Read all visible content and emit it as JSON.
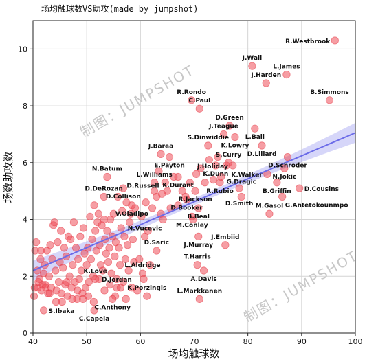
{
  "chart_data": {
    "type": "scatter",
    "title": "场均触球数VS助攻(made by jumpshot)",
    "xlabel": "场均触球数",
    "ylabel": "场数助攻数",
    "xlim": [
      40,
      100
    ],
    "ylim": [
      0,
      11
    ],
    "xticks": [
      "40",
      "50",
      "60",
      "70",
      "80",
      "90",
      "100"
    ],
    "yticks": [
      "0",
      "2",
      "4",
      "6",
      "8",
      "10"
    ],
    "grid": true,
    "point_color": "#ef4e59",
    "regression_color": "#6b6be8",
    "regression": {
      "x": [
        40,
        100
      ],
      "y": [
        2.2,
        7.05
      ],
      "band": [
        0.12,
        0.35
      ]
    },
    "watermarks": [
      "制图：JUMPSHOT",
      "制图：JUMPSHOT"
    ],
    "labeled_points": [
      {
        "label": "R.Westbrook",
        "x": 96.2,
        "y": 10.3
      },
      {
        "label": "J.Wall",
        "x": 80.8,
        "y": 9.4
      },
      {
        "label": "L.James",
        "x": 87.2,
        "y": 9.1
      },
      {
        "label": "J.Harden",
        "x": 83.4,
        "y": 8.8
      },
      {
        "label": "B.Simmons",
        "x": 95.2,
        "y": 8.2
      },
      {
        "label": "R.Rondo",
        "x": 69.5,
        "y": 8.2
      },
      {
        "label": "C.Paul",
        "x": 71.0,
        "y": 7.9
      },
      {
        "label": "D.Green",
        "x": 76.6,
        "y": 7.3
      },
      {
        "label": "L.Ball",
        "x": 81.3,
        "y": 7.2
      },
      {
        "label": "J.Teague",
        "x": 75.5,
        "y": 7.0
      },
      {
        "label": "K.Lowry",
        "x": 77.6,
        "y": 6.9
      },
      {
        "label": "D.Lillard",
        "x": 82.6,
        "y": 6.6
      },
      {
        "label": "S.Dinwiddie",
        "x": 72.6,
        "y": 6.6
      },
      {
        "label": "J.Barea",
        "x": 63.8,
        "y": 6.3
      },
      {
        "label": "E.Payton",
        "x": 65.4,
        "y": 6.2
      },
      {
        "label": "D.Schroder",
        "x": 87.4,
        "y": 6.2
      },
      {
        "label": "S.Curry",
        "x": 76.4,
        "y": 6.0
      },
      {
        "label": "K.Dunn",
        "x": 74.0,
        "y": 5.9
      },
      {
        "label": "J.Holiday",
        "x": 77.2,
        "y": 5.9
      },
      {
        "label": "N.Jokic",
        "x": 86.8,
        "y": 5.8
      },
      {
        "label": "K.Walker",
        "x": 83.6,
        "y": 5.6
      },
      {
        "label": "N.Batum",
        "x": 53.8,
        "y": 5.5
      },
      {
        "label": "K.Durant",
        "x": 67.0,
        "y": 5.5
      },
      {
        "label": "R.Rubio",
        "x": 74.8,
        "y": 5.3
      },
      {
        "label": "B.Griffin",
        "x": 85.4,
        "y": 5.3
      },
      {
        "label": "L.Williams",
        "x": 62.6,
        "y": 5.3
      },
      {
        "label": "D.Cousins",
        "x": 89.6,
        "y": 5.1
      },
      {
        "label": "D.Collison",
        "x": 56.8,
        "y": 5.1
      },
      {
        "label": "D.Smith",
        "x": 78.4,
        "y": 5.1
      },
      {
        "label": "R.Jackson",
        "x": 70.2,
        "y": 5.0
      },
      {
        "label": "D.Russell",
        "x": 64.0,
        "y": 4.9
      },
      {
        "label": "G.Dragic",
        "x": 78.8,
        "y": 4.8
      },
      {
        "label": "G.Antetokounmpo",
        "x": 86.4,
        "y": 4.8
      },
      {
        "label": "D.DeRozan",
        "x": 53.2,
        "y": 4.8
      },
      {
        "label": "D.Booker",
        "x": 68.6,
        "y": 4.7
      },
      {
        "label": "V.Oladipo",
        "x": 58.4,
        "y": 4.5
      },
      {
        "label": "B.Beal",
        "x": 70.8,
        "y": 4.4
      },
      {
        "label": "M.Gasol",
        "x": 84.0,
        "y": 4.2
      },
      {
        "label": "M.Conley",
        "x": 69.6,
        "y": 4.1
      },
      {
        "label": "N.Vucevic",
        "x": 60.8,
        "y": 3.4
      },
      {
        "label": "J.Murray",
        "x": 70.8,
        "y": 3.4
      },
      {
        "label": "J.Embiid",
        "x": 75.8,
        "y": 3.1
      },
      {
        "label": "D.Saric",
        "x": 63.0,
        "y": 2.9
      },
      {
        "label": "T.Harris",
        "x": 70.6,
        "y": 2.4
      },
      {
        "label": "L.Aldridge",
        "x": 60.4,
        "y": 2.1
      },
      {
        "label": "A.Davis",
        "x": 71.8,
        "y": 2.2
      },
      {
        "label": "K.Love",
        "x": 51.6,
        "y": 1.9
      },
      {
        "label": "D.Jordan",
        "x": 55.6,
        "y": 1.6
      },
      {
        "label": "K.Porzingis",
        "x": 61.2,
        "y": 1.3
      },
      {
        "label": "L.Markkanen",
        "x": 71.0,
        "y": 1.2
      },
      {
        "label": "C.Anthony",
        "x": 54.8,
        "y": 1.2
      },
      {
        "label": "S.Ibaka",
        "x": 42.0,
        "y": 0.8
      },
      {
        "label": "C.Capela",
        "x": 51.4,
        "y": 0.8
      }
    ],
    "points": [
      [
        40.2,
        1.3
      ],
      [
        40.4,
        2.9
      ],
      [
        40.6,
        3.2
      ],
      [
        40.8,
        2.2
      ],
      [
        40.9,
        1.6
      ],
      [
        41.2,
        1.9
      ],
      [
        41.4,
        2.6
      ],
      [
        41.5,
        2.9
      ],
      [
        41.8,
        1.7
      ],
      [
        42.0,
        2.1
      ],
      [
        42.2,
        2.4
      ],
      [
        42.4,
        1.6
      ],
      [
        42.6,
        2.9
      ],
      [
        42.8,
        1.4
      ],
      [
        43.0,
        2.0
      ],
      [
        43.2,
        3.1
      ],
      [
        43.4,
        1.6
      ],
      [
        43.6,
        2.6
      ],
      [
        43.8,
        3.8
      ],
      [
        44.0,
        3.9
      ],
      [
        44.2,
        2.2
      ],
      [
        44.4,
        1.5
      ],
      [
        44.6,
        3.2
      ],
      [
        44.8,
        1.8
      ],
      [
        45.0,
        2.5
      ],
      [
        45.2,
        3.6
      ],
      [
        45.4,
        1.1
      ],
      [
        45.6,
        2.3
      ],
      [
        45.8,
        3.0
      ],
      [
        46.0,
        1.7
      ],
      [
        46.2,
        2.7
      ],
      [
        46.4,
        1.3
      ],
      [
        46.6,
        3.4
      ],
      [
        46.8,
        2.0
      ],
      [
        47.0,
        3.3
      ],
      [
        47.2,
        1.6
      ],
      [
        47.4,
        2.4
      ],
      [
        47.6,
        3.9
      ],
      [
        47.8,
        1.8
      ],
      [
        48.0,
        3.0
      ],
      [
        48.2,
        1.2
      ],
      [
        48.4,
        2.6
      ],
      [
        48.6,
        1.9
      ],
      [
        48.8,
        3.4
      ],
      [
        49.0,
        2.2
      ],
      [
        49.2,
        1.4
      ],
      [
        49.4,
        3.7
      ],
      [
        49.6,
        2.8
      ],
      [
        49.8,
        1.6
      ],
      [
        50.0,
        2.4
      ],
      [
        50.2,
        3.0
      ],
      [
        50.4,
        1.8
      ],
      [
        50.6,
        4.1
      ],
      [
        50.8,
        2.6
      ],
      [
        51.0,
        3.3
      ],
      [
        51.2,
        2.0
      ],
      [
        51.4,
        4.5
      ],
      [
        51.6,
        3.6
      ],
      [
        51.8,
        2.9
      ],
      [
        52.0,
        3.9
      ],
      [
        52.2,
        4.2
      ],
      [
        52.4,
        3.1
      ],
      [
        52.6,
        2.4
      ],
      [
        52.8,
        3.8
      ],
      [
        53.0,
        2.2
      ],
      [
        53.2,
        4.0
      ],
      [
        53.4,
        3.3
      ],
      [
        53.6,
        2.8
      ],
      [
        53.8,
        3.6
      ],
      [
        54.0,
        2.5
      ],
      [
        54.2,
        3.0
      ],
      [
        54.4,
        4.0
      ],
      [
        54.6,
        2.1
      ],
      [
        54.8,
        3.4
      ],
      [
        55.0,
        4.2
      ],
      [
        55.2,
        2.7
      ],
      [
        55.4,
        3.2
      ],
      [
        55.6,
        1.9
      ],
      [
        55.8,
        4.8
      ],
      [
        56.0,
        3.0
      ],
      [
        56.2,
        2.4
      ],
      [
        56.4,
        3.7
      ],
      [
        56.6,
        4.3
      ],
      [
        56.8,
        1.8
      ],
      [
        57.0,
        3.4
      ],
      [
        57.2,
        2.6
      ],
      [
        57.4,
        4.6
      ],
      [
        57.6,
        3.1
      ],
      [
        57.8,
        2.2
      ],
      [
        58.0,
        3.9
      ],
      [
        58.2,
        4.2
      ],
      [
        58.4,
        1.6
      ],
      [
        58.6,
        3.3
      ],
      [
        58.8,
        2.5
      ],
      [
        59.0,
        4.4
      ],
      [
        59.4,
        1.5
      ],
      [
        59.8,
        2.6
      ],
      [
        60.2,
        4.1
      ],
      [
        60.6,
        1.9
      ],
      [
        61.0,
        4.6
      ],
      [
        61.4,
        3.6
      ],
      [
        61.8,
        2.4
      ],
      [
        62.2,
        4.4
      ],
      [
        62.6,
        5.0
      ],
      [
        63.0,
        4.8
      ],
      [
        63.4,
        5.7
      ],
      [
        63.8,
        4.2
      ],
      [
        64.2,
        4.0
      ],
      [
        64.6,
        5.3
      ],
      [
        65.0,
        5.0
      ],
      [
        65.6,
        4.4
      ],
      [
        66.2,
        5.5
      ],
      [
        67.0,
        4.5
      ],
      [
        67.8,
        5.0
      ],
      [
        68.4,
        4.8
      ],
      [
        69.2,
        5.3
      ],
      [
        69.8,
        4.0
      ],
      [
        70.4,
        5.6
      ],
      [
        71.2,
        5.8
      ],
      [
        72.0,
        5.3
      ],
      [
        72.8,
        6.1
      ],
      [
        73.6,
        5.4
      ],
      [
        74.4,
        6.2
      ],
      [
        75.0,
        5.5
      ],
      [
        76.0,
        5.9
      ],
      [
        40.3,
        1.6
      ],
      [
        41.0,
        1.8
      ],
      [
        41.6,
        1.5
      ],
      [
        42.3,
        1.7
      ],
      [
        43.1,
        1.4
      ],
      [
        44.3,
        1.1
      ],
      [
        45.3,
        1.4
      ],
      [
        46.3,
        1.8
      ],
      [
        47.3,
        1.2
      ],
      [
        48.3,
        1.5
      ],
      [
        49.3,
        1.2
      ],
      [
        50.3,
        1.3
      ],
      [
        51.3,
        1.1
      ],
      [
        52.3,
        1.9
      ],
      [
        53.3,
        1.5
      ],
      [
        54.3,
        1.7
      ],
      [
        55.3,
        1.3
      ],
      [
        56.3,
        1.6
      ],
      [
        57.3,
        1.2
      ]
    ]
  }
}
